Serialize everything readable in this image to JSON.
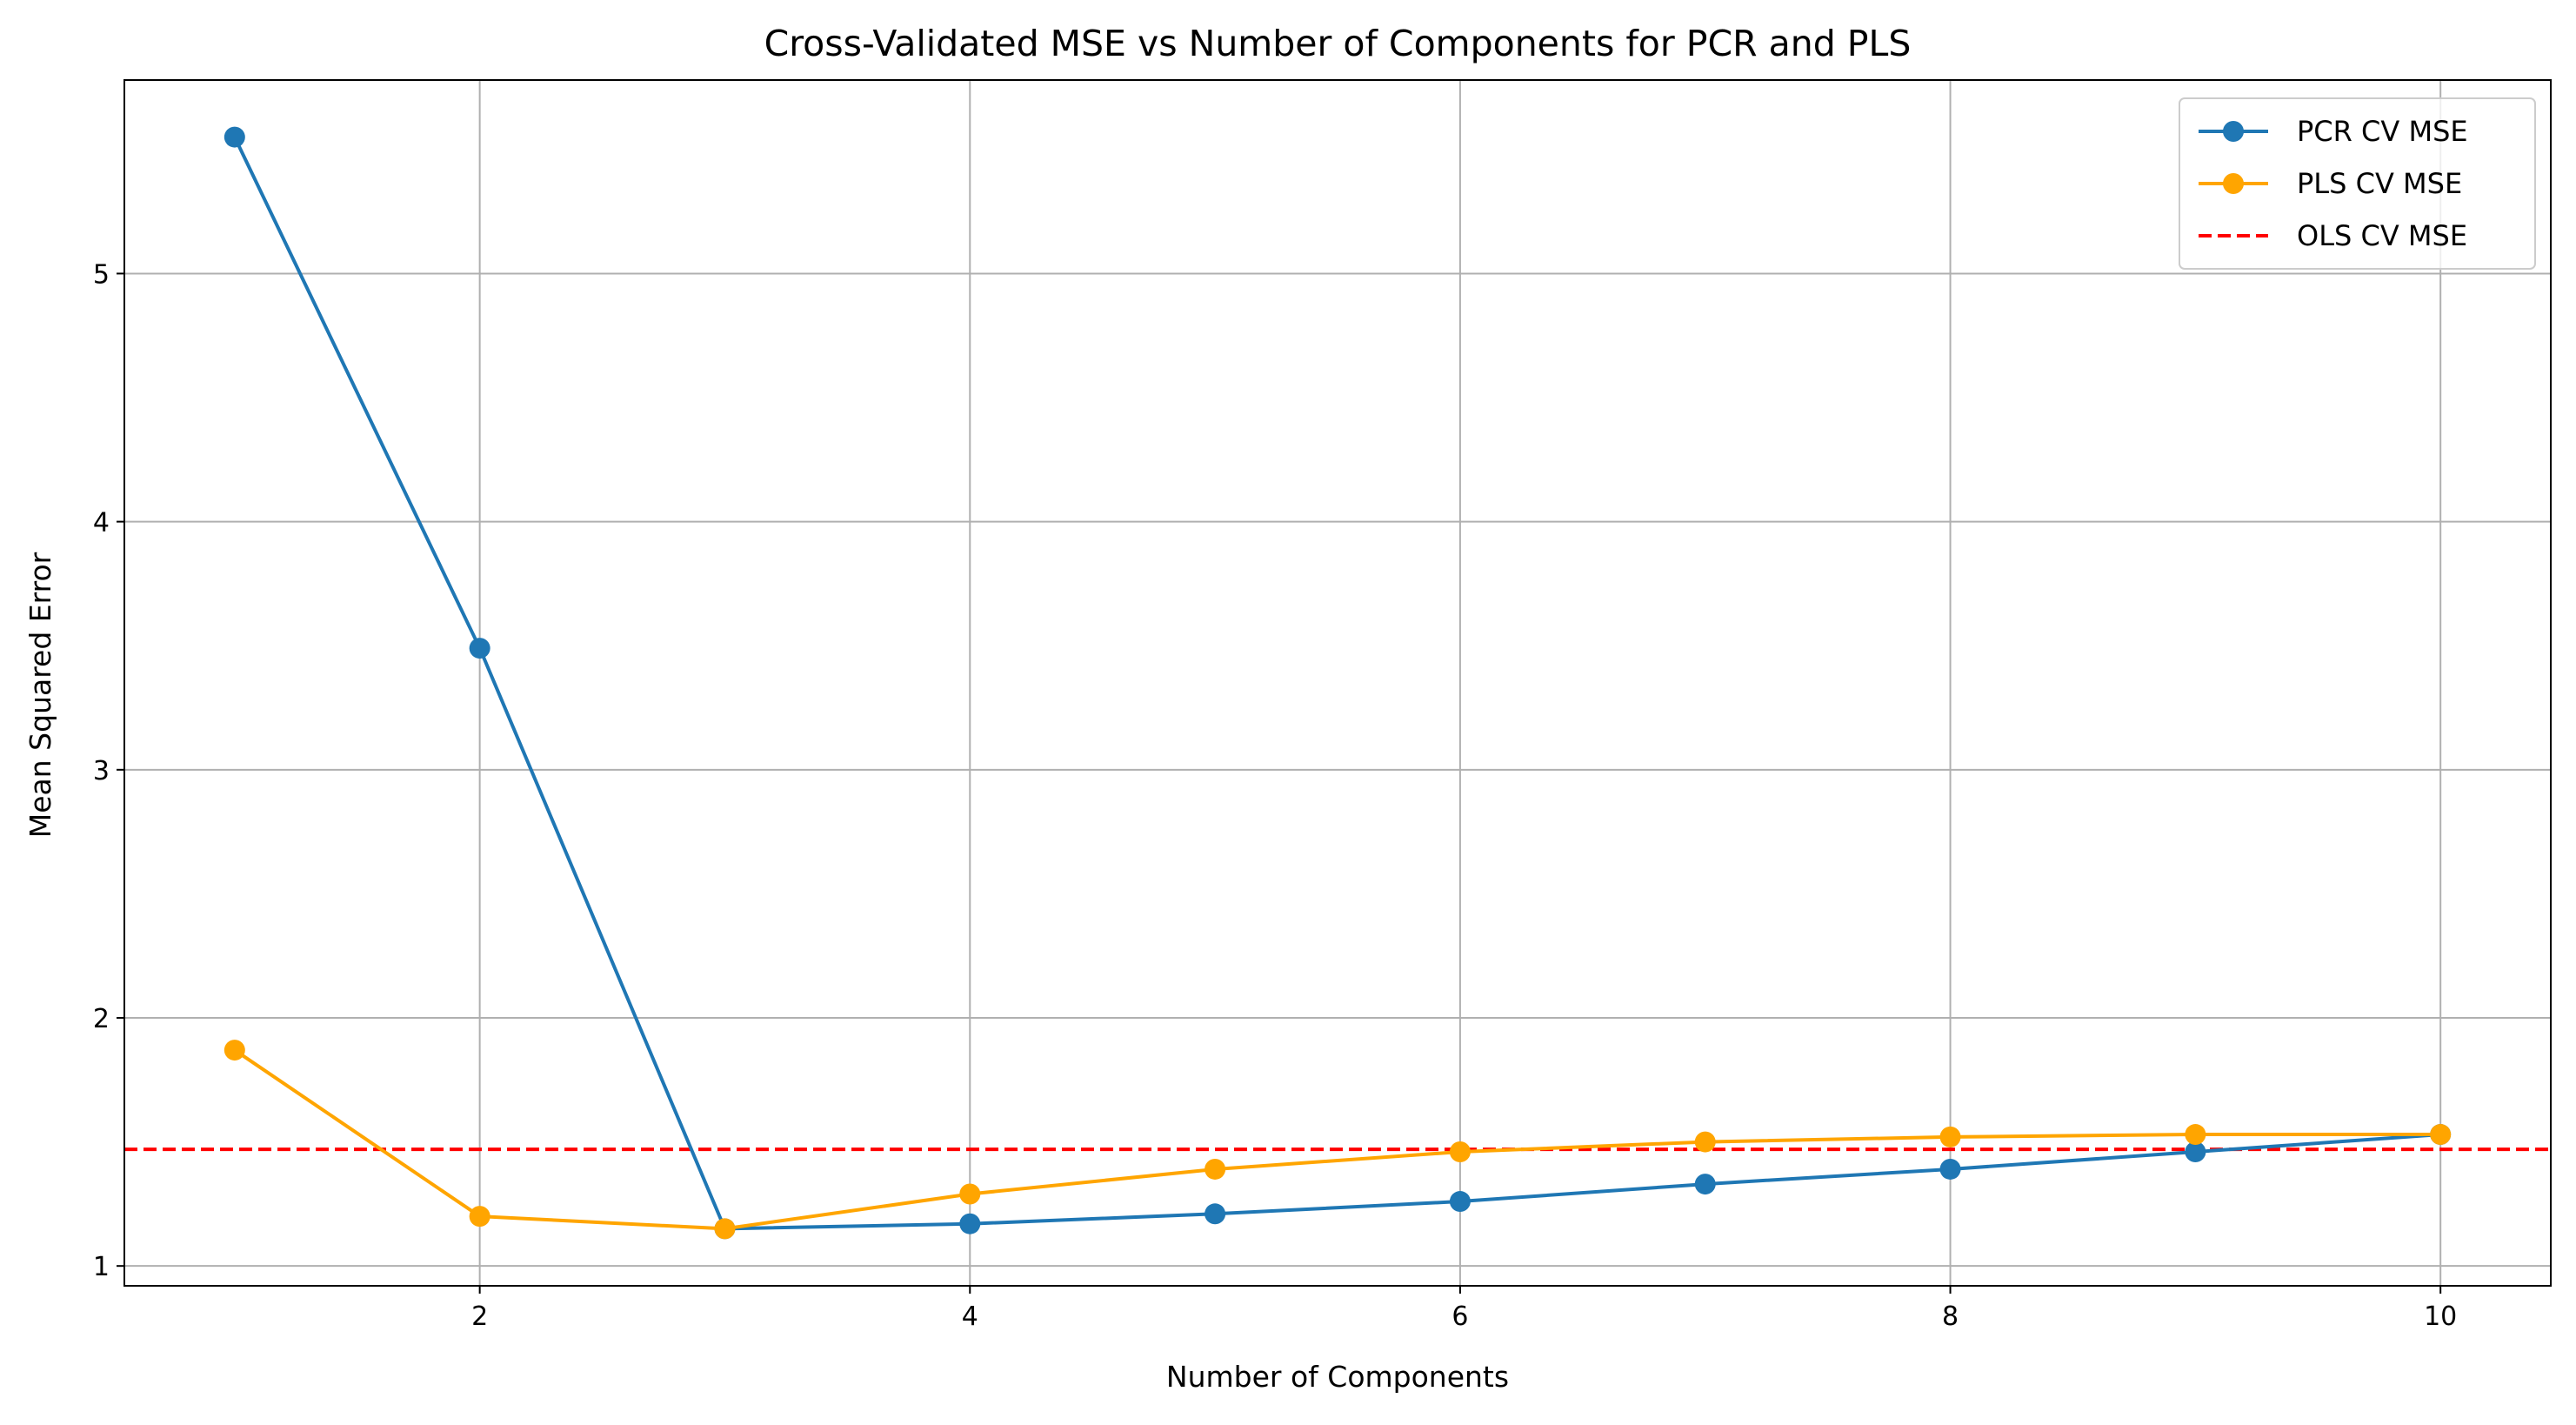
{
  "chart_data": {
    "type": "line",
    "title": "Cross-Validated MSE vs Number of Components for PCR and PLS",
    "xlabel": "Number of Components",
    "ylabel": "Mean Squared Error",
    "x": [
      1,
      2,
      3,
      4,
      5,
      6,
      7,
      8,
      9,
      10
    ],
    "xlim": [
      0.55,
      10.45
    ],
    "ylim": [
      0.92,
      5.78
    ],
    "xticks": [
      2,
      4,
      6,
      8,
      10
    ],
    "xtick_labels": [
      "2",
      "4",
      "6",
      "8",
      "10"
    ],
    "yticks": [
      1,
      2,
      3,
      4,
      5
    ],
    "ytick_labels": [
      "1",
      "2",
      "3",
      "4",
      "5"
    ],
    "grid": true,
    "legend_position": "top-right",
    "series": [
      {
        "name": "PCR CV MSE",
        "color": "#1f77b4",
        "marker": "circle",
        "line_style": "solid",
        "values": [
          5.55,
          3.49,
          1.15,
          1.17,
          1.21,
          1.26,
          1.33,
          1.39,
          1.46,
          1.53
        ]
      },
      {
        "name": "PLS CV MSE",
        "color": "#ffa500",
        "marker": "circle",
        "line_style": "solid",
        "values": [
          1.87,
          1.2,
          1.15,
          1.29,
          1.39,
          1.46,
          1.5,
          1.52,
          1.53,
          1.53
        ]
      },
      {
        "name": "OLS CV MSE",
        "color": "#ff0000",
        "marker": "none",
        "line_style": "dashed",
        "type": "hline",
        "y": 1.47
      }
    ]
  }
}
